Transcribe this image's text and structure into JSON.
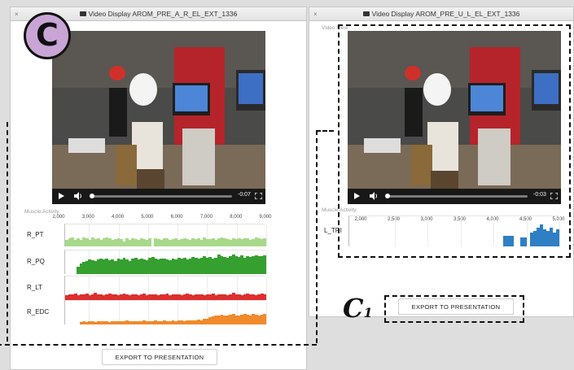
{
  "colors": {
    "pt": "#a8d98a",
    "pq": "#35a02f",
    "lt": "#de2f2f",
    "edc": "#f08a2c",
    "tri": "#2e7fc4",
    "badge": "#c9a5d6"
  },
  "left": {
    "title": "Video Display AROM_PRE_A_R_EL_EXT_1336",
    "video": {
      "time": "-0:07"
    },
    "muscle_label": "Muscle Activity",
    "ticks": [
      "2,000",
      "3,000",
      "4,000",
      "5,000",
      "6,000",
      "7,000",
      "8,000",
      "9,000"
    ],
    "tracks": [
      {
        "label": "R_PT",
        "color_key": "pt",
        "values": [
          0.3,
          0.35,
          0.4,
          0.3,
          0.35,
          0.3,
          0.4,
          0.35,
          0.3,
          0.38,
          0.32,
          0.36,
          0.3,
          0.34,
          0.4,
          0.35,
          0.3,
          0.33,
          0.37,
          0.31,
          0.2,
          0.35,
          0.3,
          0.36,
          0.33,
          0.3,
          0.34,
          0.31,
          0.3,
          0.36,
          0.0,
          0.35,
          0.32,
          0.3,
          0.34,
          0.37,
          0.3,
          0.33,
          0.36,
          0.3,
          0.31,
          0.35,
          0.33,
          0.3,
          0.34,
          0.32,
          0.36,
          0.3,
          0.38,
          0.31,
          0.33,
          0.35,
          0.3,
          0.34,
          0.4,
          0.36,
          0.32,
          0.3,
          0.35,
          0.33,
          0.37,
          0.31,
          0.34,
          0.36,
          0.3,
          0.33,
          0.38,
          0.35,
          0.31,
          0.34
        ]
      },
      {
        "label": "R_PQ",
        "color_key": "pq",
        "values": [
          0.0,
          0.0,
          0.0,
          0.0,
          0.3,
          0.45,
          0.5,
          0.55,
          0.6,
          0.58,
          0.55,
          0.6,
          0.62,
          0.6,
          0.65,
          0.58,
          0.6,
          0.55,
          0.62,
          0.6,
          0.66,
          0.6,
          0.55,
          0.62,
          0.68,
          0.6,
          0.64,
          0.6,
          0.58,
          0.66,
          0.7,
          0.62,
          0.6,
          0.65,
          0.62,
          0.6,
          0.58,
          0.64,
          0.6,
          0.68,
          0.62,
          0.66,
          0.6,
          0.64,
          0.7,
          0.66,
          0.62,
          0.68,
          0.72,
          0.66,
          0.7,
          0.64,
          0.68,
          0.8,
          0.75,
          0.7,
          0.66,
          0.72,
          0.8,
          0.74,
          0.7,
          0.76,
          0.68,
          0.72,
          0.7,
          0.74,
          0.76,
          0.72,
          0.75,
          0.78
        ]
      },
      {
        "label": "R_LT",
        "color_key": "lt",
        "values": [
          0.2,
          0.25,
          0.22,
          0.28,
          0.2,
          0.24,
          0.22,
          0.26,
          0.2,
          0.23,
          0.3,
          0.25,
          0.22,
          0.2,
          0.24,
          0.26,
          0.22,
          0.25,
          0.2,
          0.23,
          0.26,
          0.22,
          0.2,
          0.25,
          0.23,
          0.21,
          0.24,
          0.26,
          0.2,
          0.22,
          0.25,
          0.23,
          0.2,
          0.24,
          0.22,
          0.26,
          0.2,
          0.23,
          0.25,
          0.22,
          0.2,
          0.24,
          0.26,
          0.22,
          0.2,
          0.23,
          0.25,
          0.22,
          0.2,
          0.24,
          0.22,
          0.26,
          0.2,
          0.23,
          0.25,
          0.22,
          0.2,
          0.24,
          0.3,
          0.25,
          0.22,
          0.2,
          0.24,
          0.26,
          0.22,
          0.25,
          0.2,
          0.23,
          0.26,
          0.22
        ]
      },
      {
        "label": "R_EDC",
        "color_key": "edc",
        "values": [
          0.0,
          0.0,
          0.0,
          0.0,
          0.0,
          0.1,
          0.12,
          0.1,
          0.15,
          0.12,
          0.1,
          0.14,
          0.12,
          0.15,
          0.13,
          0.1,
          0.12,
          0.15,
          0.14,
          0.12,
          0.13,
          0.16,
          0.14,
          0.12,
          0.15,
          0.13,
          0.14,
          0.16,
          0.15,
          0.13,
          0.14,
          0.16,
          0.15,
          0.14,
          0.16,
          0.15,
          0.13,
          0.16,
          0.15,
          0.17,
          0.16,
          0.15,
          0.17,
          0.18,
          0.16,
          0.18,
          0.2,
          0.18,
          0.22,
          0.25,
          0.3,
          0.35,
          0.38,
          0.36,
          0.4,
          0.38,
          0.36,
          0.4,
          0.42,
          0.38,
          0.36,
          0.4,
          0.42,
          0.4,
          0.38,
          0.42,
          0.4,
          0.38,
          0.4,
          0.42
        ]
      }
    ],
    "export_label": "EXPORT TO PRESENTATION",
    "badge": "C"
  },
  "right": {
    "title": "Video Display AROM_PRE_U_L_EL_EXT_1336",
    "video_label": "Video View",
    "video": {
      "time": "-0:03"
    },
    "muscle_label": "Muscle Activity",
    "ticks": [
      "2,000",
      "2,500",
      "3,000",
      "3,500",
      "4,000",
      "4,500",
      "5,000"
    ],
    "tracks": [
      {
        "label": "L_TRI",
        "color_key": "tri",
        "values": [
          0,
          0,
          0,
          0,
          0,
          0,
          0,
          0,
          0,
          0,
          0,
          0,
          0,
          0,
          0,
          0,
          0,
          0,
          0,
          0,
          0,
          0,
          0,
          0,
          0,
          0,
          0,
          0,
          0,
          0,
          0,
          0,
          0,
          0,
          0,
          0,
          0,
          0,
          0,
          0,
          0,
          0,
          0,
          0,
          0,
          0,
          0,
          0.35,
          0.35,
          0.35,
          0,
          0,
          0.3,
          0.3,
          0,
          0.45,
          0.5,
          0.6,
          0.7,
          0.55,
          0.5,
          0.6,
          0.45,
          0.55
        ]
      }
    ],
    "export_label": "EXPORT TO PRESENTATION",
    "badge_main": "C",
    "badge_sub": "1"
  }
}
